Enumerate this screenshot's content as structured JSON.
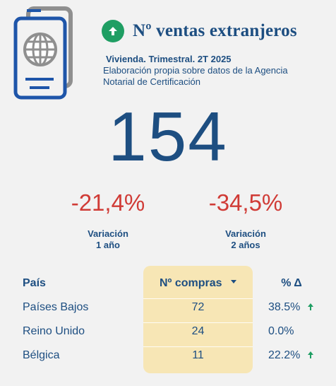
{
  "header": {
    "title": "Nº ventas extranjeros",
    "subtitle_line1": "Vivienda. Trimestral. 2T 2025",
    "subtitle_line2": "Elaboración propia sobre datos de la Agencia Notarial de Certificación",
    "icon": "passport-icon",
    "trend_icon": "arrow-up-icon"
  },
  "main": {
    "value": "154"
  },
  "variations": [
    {
      "value": "-21,4%",
      "label_line1": "Variación",
      "label_line2": "1 año"
    },
    {
      "value": "-34,5%",
      "label_line1": "Variación",
      "label_line2": "2 años"
    }
  ],
  "table": {
    "headers": {
      "country": "País",
      "purchases": "Nº compras",
      "delta": "% Δ"
    },
    "rows": [
      {
        "country": "Países Bajos",
        "purchases": "72",
        "delta": "38.5%",
        "trend": "up"
      },
      {
        "country": "Reino Unido",
        "purchases": "24",
        "delta": "0.0%",
        "trend": "none"
      },
      {
        "country": "Bélgica",
        "purchases": "11",
        "delta": "22.2%",
        "trend": "up"
      }
    ]
  },
  "colors": {
    "primary": "#1d4e81",
    "negative": "#d03b36",
    "positive": "#1f9e63",
    "highlight": "#f7e6b5",
    "background": "#f2f2f2"
  }
}
